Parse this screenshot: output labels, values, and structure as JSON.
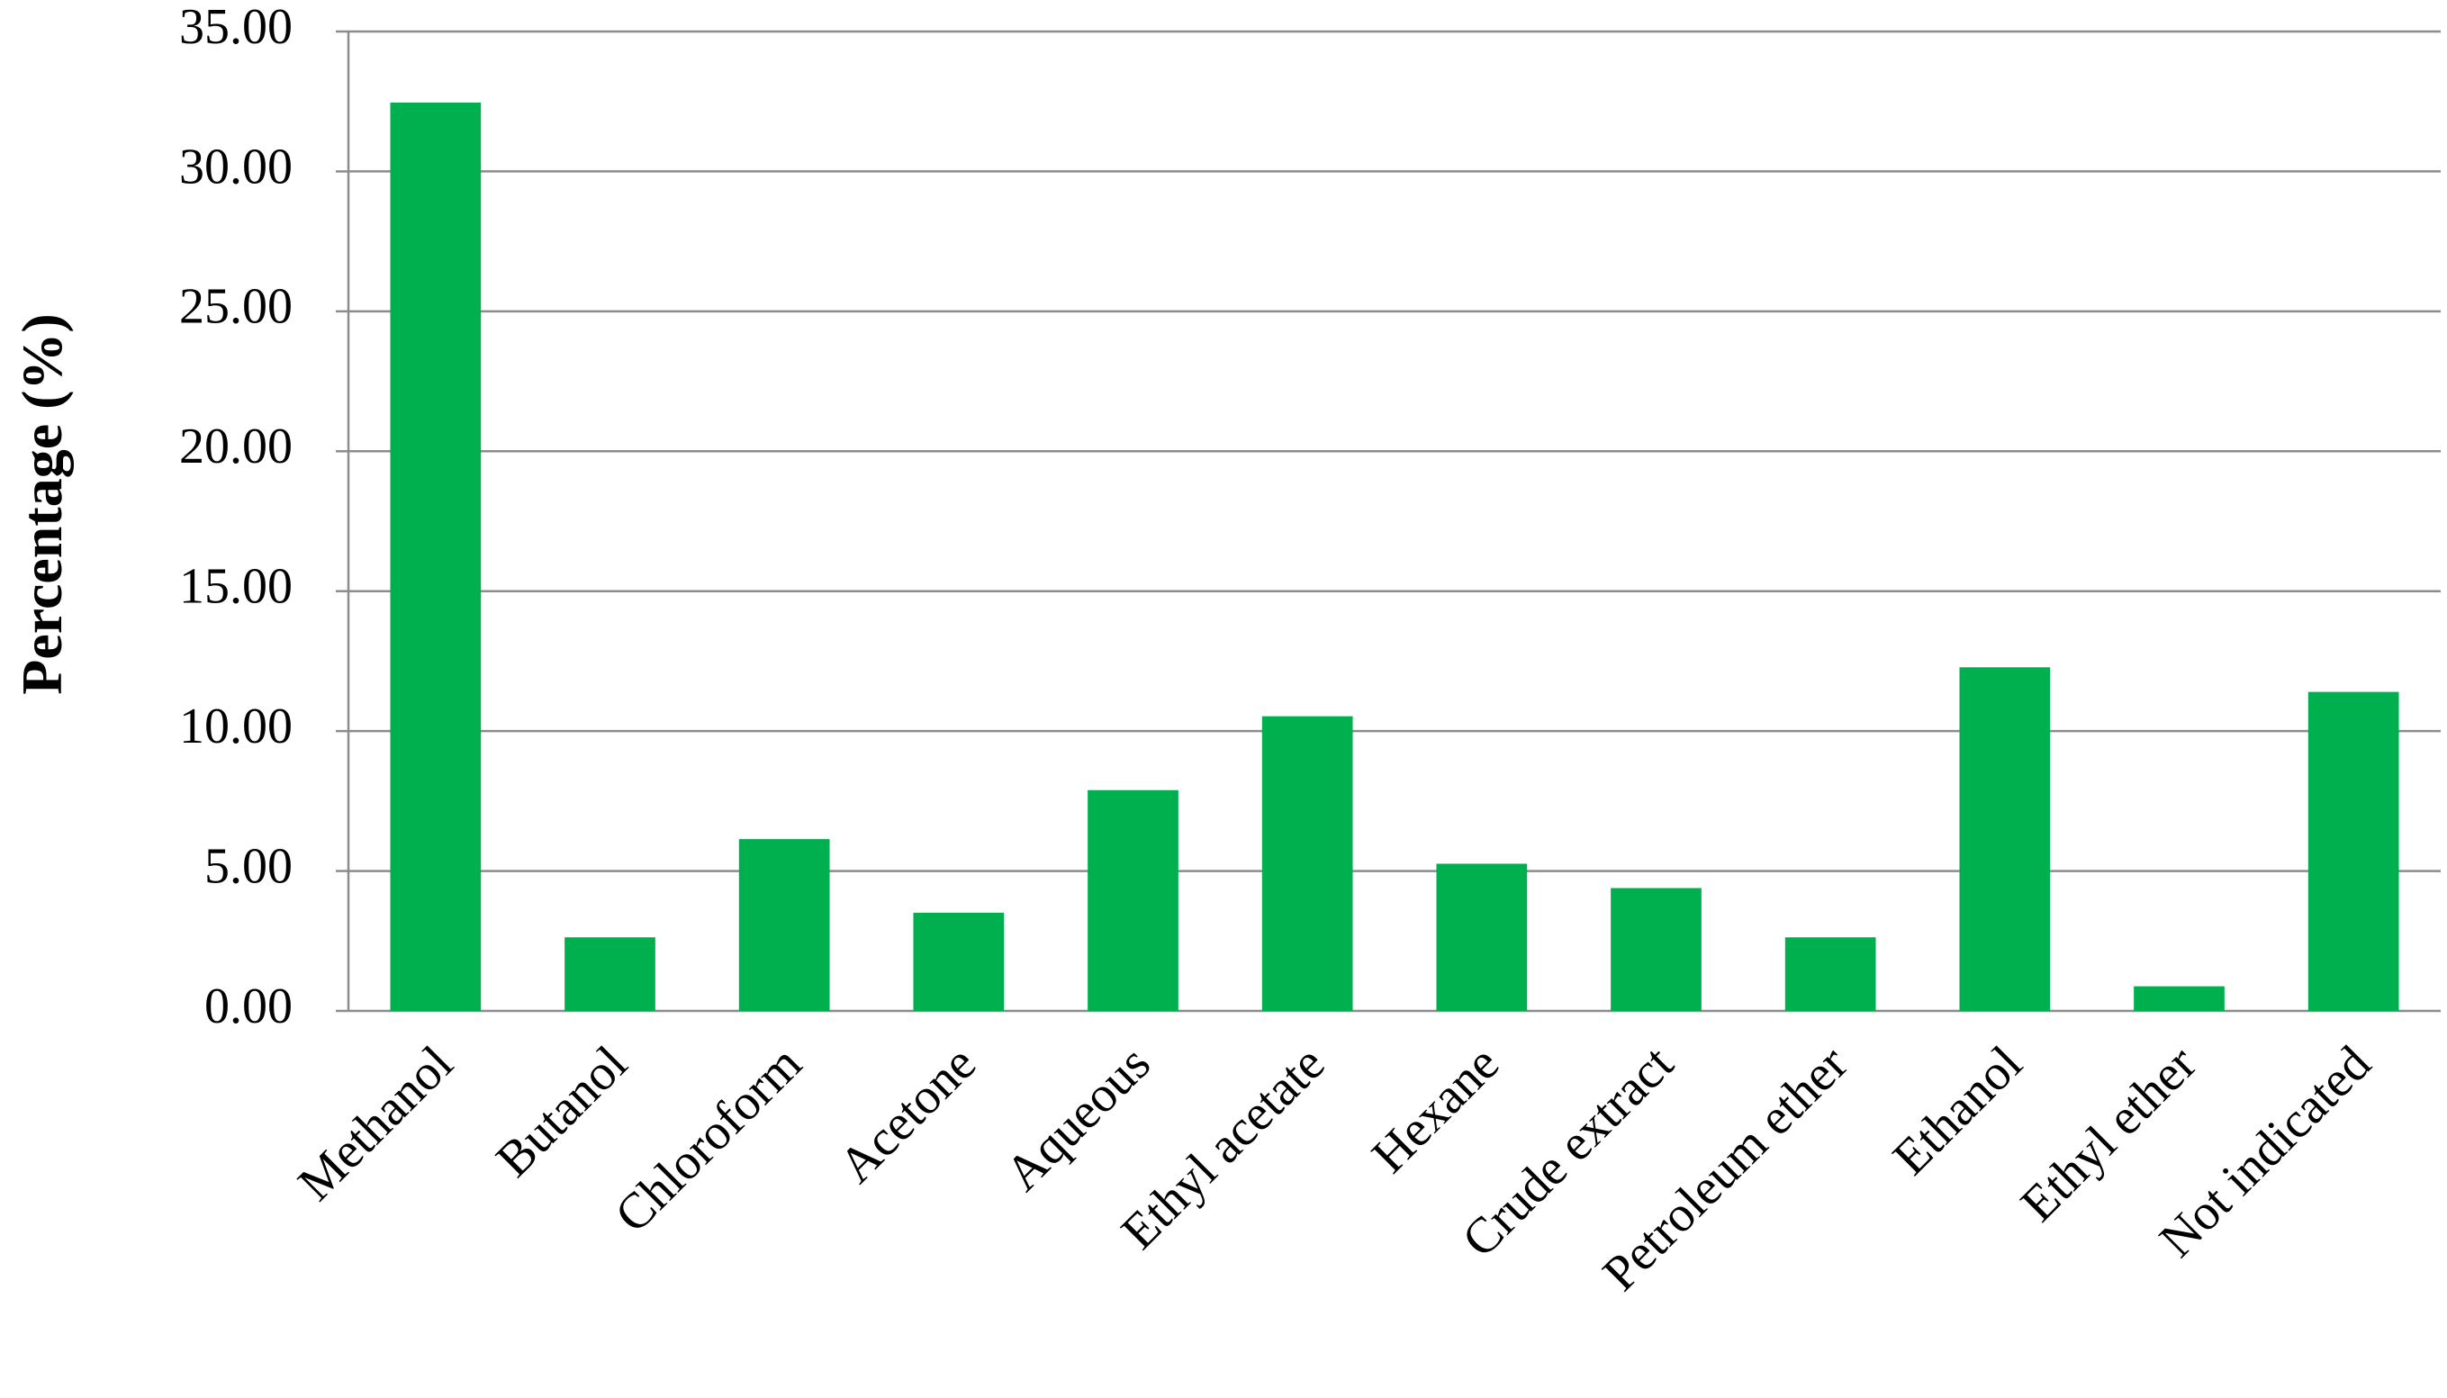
{
  "chart_data": {
    "type": "bar",
    "y_label": "Percentage (%)",
    "categories": [
      "Methanol",
      "Butanol",
      "Chloroform",
      "Acetone",
      "Aqueous",
      "Ethyl acetate",
      "Hexane",
      "Crude extract",
      "Petroleum ether",
      "Ethanol",
      "Ethyl ether",
      "Not indicated"
    ],
    "values": [
      32.46,
      2.63,
      6.14,
      3.51,
      7.89,
      10.53,
      5.26,
      4.39,
      2.63,
      12.28,
      0.88,
      11.4
    ],
    "color": "#00b04f",
    "ylim": [
      0,
      35
    ],
    "yticks": [
      {
        "value": 0,
        "label": "0.00"
      },
      {
        "value": 5,
        "label": "5.00"
      },
      {
        "value": 10,
        "label": "10.00"
      },
      {
        "value": 15,
        "label": "15.00"
      },
      {
        "value": 20,
        "label": "20.00"
      },
      {
        "value": 25,
        "label": "25.00"
      },
      {
        "value": 30,
        "label": "30.00"
      },
      {
        "value": 35,
        "label": "35.00"
      }
    ],
    "grid": true
  }
}
